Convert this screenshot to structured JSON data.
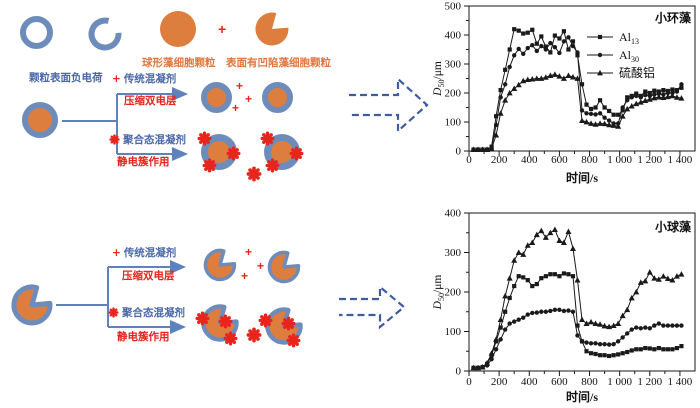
{
  "palette": {
    "blue": "#6e8cbb",
    "arrow_blue": "#5e82bd",
    "dash_blue": "#3f5c9e",
    "text_blue": "#4b69a8",
    "orange": "#dd7e3e",
    "red": "#e8251d",
    "chart_line": "#1a1a1a"
  },
  "diagram_top": {
    "label_negative_charge": "颗粒表面负电荷",
    "label_spherical": "球形藻细胞颗粒",
    "label_concave": "表面有凹陷藻细胞颗粒",
    "plus": "+",
    "branch1_title": "传统混凝剂",
    "branch1_sub": "压缩双电层",
    "branch2_title": "聚合态混凝剂",
    "branch2_sub": "静电簇作用"
  },
  "diagram_bottom": {
    "plus": "+",
    "branch1_title": "传统混凝剂",
    "branch1_sub": "压缩双电层",
    "branch2_title": "聚合态混凝剂",
    "branch2_sub": "静电簇作用"
  },
  "chart_data": [
    {
      "type": "line",
      "title": "小环藻",
      "xlabel": "时间/s",
      "ylabel_base": "D",
      "ylabel_sub": "50",
      "ylabel_unit": "/μm",
      "xlim": [
        0,
        1500
      ],
      "ylim": [
        0,
        500
      ],
      "xticks": [
        0,
        200,
        400,
        600,
        800,
        1000,
        1200,
        1400
      ],
      "xtick_labels": [
        "0",
        "200",
        "400",
        "600",
        "800",
        "1 000",
        "1 200",
        "1 400"
      ],
      "yticks": [
        0,
        100,
        200,
        300,
        400,
        500
      ],
      "grid": false,
      "legend_show": true,
      "legend_position": "upper-right-inside",
      "x": [
        30,
        60,
        90,
        120,
        150,
        180,
        210,
        240,
        270,
        300,
        330,
        360,
        390,
        420,
        450,
        480,
        510,
        540,
        570,
        600,
        630,
        660,
        690,
        720,
        750,
        780,
        810,
        840,
        870,
        900,
        930,
        960,
        990,
        1020,
        1050,
        1080,
        1110,
        1140,
        1170,
        1200,
        1230,
        1260,
        1290,
        1320,
        1350,
        1380,
        1410
      ],
      "series": [
        {
          "name": "Al13",
          "label_base": "Al",
          "label_sub": "13",
          "marker": "square",
          "values": [
            5,
            5,
            5,
            5,
            15,
            120,
            210,
            280,
            350,
            420,
            415,
            405,
            408,
            418,
            370,
            395,
            360,
            340,
            398,
            388,
            413,
            350,
            378,
            330,
            230,
            160,
            145,
            150,
            175,
            150,
            138,
            125,
            125,
            140,
            185,
            190,
            198,
            190,
            205,
            200,
            208,
            205,
            210,
            207,
            212,
            210,
            218
          ]
        },
        {
          "name": "Al30",
          "label_base": "Al",
          "label_sub": "30",
          "marker": "circle",
          "values": [
            5,
            5,
            5,
            5,
            8,
            90,
            185,
            230,
            290,
            330,
            352,
            335,
            355,
            365,
            345,
            362,
            350,
            372,
            358,
            338,
            378,
            392,
            362,
            340,
            140,
            130,
            128,
            126,
            130,
            115,
            105,
            95,
            95,
            150,
            175,
            185,
            190,
            185,
            193,
            190,
            195,
            197,
            195,
            200,
            200,
            205,
            230
          ]
        },
        {
          "name": "硫酸铝",
          "label_base": "硫酸铝",
          "label_sub": "",
          "marker": "triangle",
          "values": [
            5,
            5,
            5,
            5,
            8,
            55,
            130,
            175,
            200,
            215,
            228,
            242,
            246,
            248,
            250,
            250,
            254,
            260,
            264,
            258,
            250,
            260,
            255,
            250,
            105,
            100,
            95,
            92,
            95,
            94,
            90,
            88,
            85,
            120,
            145,
            155,
            163,
            168,
            174,
            178,
            183,
            186,
            184,
            187,
            190,
            185,
            182
          ]
        }
      ]
    },
    {
      "type": "line",
      "title": "小球藻",
      "xlabel": "时间/s",
      "ylabel_base": "D",
      "ylabel_sub": "50",
      "ylabel_unit": "/μm",
      "xlim": [
        0,
        1500
      ],
      "ylim": [
        0,
        400
      ],
      "xticks": [
        0,
        200,
        400,
        600,
        800,
        1000,
        1200,
        1400
      ],
      "xtick_labels": [
        "0",
        "200",
        "400",
        "600",
        "800",
        "1 000",
        "1 200",
        "1 400"
      ],
      "yticks": [
        0,
        100,
        200,
        300,
        400
      ],
      "grid": false,
      "legend_show": false,
      "x": [
        30,
        60,
        90,
        120,
        150,
        180,
        210,
        240,
        270,
        300,
        330,
        360,
        390,
        420,
        450,
        480,
        510,
        540,
        570,
        600,
        630,
        660,
        690,
        720,
        750,
        780,
        810,
        840,
        870,
        900,
        930,
        960,
        990,
        1020,
        1050,
        1080,
        1110,
        1140,
        1170,
        1200,
        1230,
        1260,
        1290,
        1320,
        1350,
        1380,
        1410
      ],
      "series": [
        {
          "name": "Al13",
          "label_base": "Al",
          "label_sub": "13",
          "marker": "square",
          "values": [
            8,
            8,
            10,
            18,
            40,
            75,
            110,
            150,
            185,
            215,
            240,
            237,
            230,
            215,
            220,
            235,
            240,
            245,
            245,
            240,
            247,
            245,
            240,
            115,
            75,
            50,
            45,
            43,
            40,
            40,
            38,
            40,
            42,
            45,
            48,
            52,
            55,
            55,
            58,
            57,
            55,
            58,
            55,
            55,
            55,
            58,
            63
          ]
        },
        {
          "name": "Al30",
          "label_base": "Al",
          "label_sub": "30",
          "marker": "circle",
          "values": [
            8,
            8,
            10,
            14,
            30,
            55,
            80,
            105,
            120,
            125,
            130,
            135,
            143,
            147,
            148,
            150,
            150,
            152,
            155,
            155,
            152,
            153,
            150,
            90,
            75,
            72,
            70,
            70,
            68,
            68,
            67,
            68,
            75,
            85,
            95,
            105,
            110,
            108,
            110,
            108,
            115,
            120,
            115,
            115,
            115,
            115,
            115
          ]
        },
        {
          "name": "硫酸铝",
          "label_base": "硫酸铝",
          "label_sub": "",
          "marker": "triangle",
          "values": [
            8,
            8,
            10,
            20,
            45,
            80,
            130,
            190,
            235,
            280,
            300,
            295,
            318,
            325,
            345,
            355,
            338,
            350,
            358,
            330,
            325,
            353,
            310,
            230,
            130,
            120,
            124,
            120,
            118,
            114,
            112,
            115,
            120,
            140,
            155,
            185,
            200,
            224,
            228,
            250,
            235,
            232,
            240,
            234,
            230,
            240,
            245
          ]
        }
      ]
    }
  ]
}
